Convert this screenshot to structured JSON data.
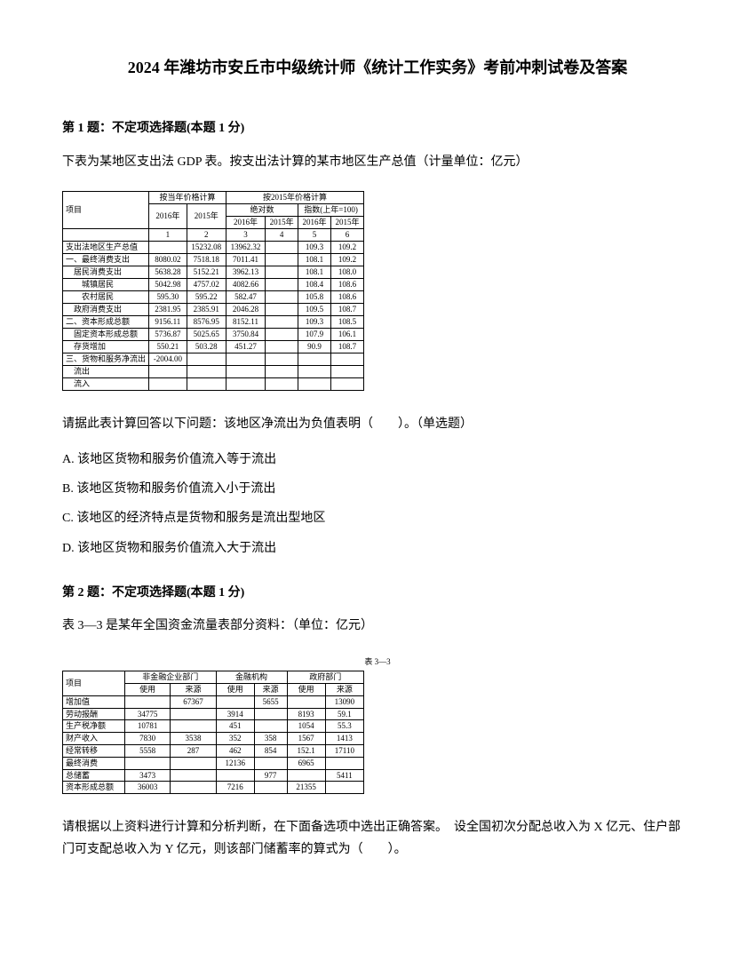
{
  "title": "2024 年潍坊市安丘市中级统计师《统计工作实务》考前冲刺试卷及答案",
  "q1": {
    "header": "第 1 题：不定项选择题(本题 1 分)",
    "text": "下表为某地区支出法 GDP 表。按支出法计算的某市地区生产总值（计量单位：亿元）",
    "analysis": "请据此表计算回答以下问题：该地区净流出为负值表明（　　）。（单选题）",
    "options": {
      "a": "A. 该地区货物和服务价值流入等于流出",
      "b": "B. 该地区货物和服务价值流入小于流出",
      "c": "C. 该地区的经济特点是货物和服务是流出型地区",
      "d": "D. 该地区货物和服务价值流入大于流出"
    }
  },
  "q2": {
    "header": "第 2 题：不定项选择题(本题 1 分)",
    "text": "表 3—3 是某年全国资金流量表部分资料：（单位：亿元）",
    "tableTitle": "表 3—3",
    "analysis": "请根据以上资料进行计算和分析判断，在下面备选项中选出正确答案。　设全国初次分配总收入为 X 亿元、住户部门可支配总收入为 Y 亿元，则该部门储蓄率的算式为（　　）。"
  },
  "table1": {
    "headers": {
      "h1": "按当年价格计算",
      "h2": "按2015年价格计算",
      "y1": "2016年",
      "y2": "2015年",
      "h3": "绝对数",
      "h4": "指数(上年=100)",
      "c1": "2016年",
      "c2": "2015年",
      "c3": "2016年",
      "c4": "2015年",
      "n1": "1",
      "n2": "2",
      "n3": "3",
      "n4": "4",
      "n5": "5",
      "n6": "6",
      "item": "项目"
    },
    "rows": [
      {
        "label": "支出法地区生产总值",
        "v1": "",
        "v2": "15232.08",
        "v3": "13962.32",
        "v4": "",
        "v5": "109.3",
        "v6": "109.2"
      },
      {
        "label": "一、最终消费支出",
        "v1": "8080.02",
        "v2": "7518.18",
        "v3": "7011.41",
        "v4": "",
        "v5": "108.1",
        "v6": "109.2"
      },
      {
        "label": "　居民消费支出",
        "v1": "5638.28",
        "v2": "5152.21",
        "v3": "3962.13",
        "v4": "",
        "v5": "108.1",
        "v6": "108.0"
      },
      {
        "label": "　　城镇居民",
        "v1": "5042.98",
        "v2": "4757.02",
        "v3": "4082.66",
        "v4": "",
        "v5": "108.4",
        "v6": "108.6"
      },
      {
        "label": "　　农村居民",
        "v1": "595.30",
        "v2": "595.22",
        "v3": "582.47",
        "v4": "",
        "v5": "105.8",
        "v6": "108.6"
      },
      {
        "label": "　政府消费支出",
        "v1": "2381.95",
        "v2": "2385.91",
        "v3": "2046.28",
        "v4": "",
        "v5": "109.5",
        "v6": "108.7"
      },
      {
        "label": "二、资本形成总额",
        "v1": "9156.11",
        "v2": "8576.95",
        "v3": "8152.11",
        "v4": "",
        "v5": "109.3",
        "v6": "108.5"
      },
      {
        "label": "　固定资本形成总额",
        "v1": "5736.87",
        "v2": "5025.65",
        "v3": "3750.84",
        "v4": "",
        "v5": "107.9",
        "v6": "106.1"
      },
      {
        "label": "　存货增加",
        "v1": "550.21",
        "v2": "503.28",
        "v3": "451.27",
        "v4": "",
        "v5": "90.9",
        "v6": "108.7"
      },
      {
        "label": "三、货物和服务净流出",
        "v1": "-2004.00",
        "v2": "",
        "v3": "",
        "v4": "",
        "v5": "",
        "v6": ""
      },
      {
        "label": "　流出",
        "v1": "",
        "v2": "",
        "v3": "",
        "v4": "",
        "v5": "",
        "v6": ""
      },
      {
        "label": "　流入",
        "v1": "",
        "v2": "",
        "v3": "",
        "v4": "",
        "v5": "",
        "v6": ""
      }
    ]
  },
  "table2": {
    "headers": {
      "h1": "非金融企业部门",
      "h2": "金融机构",
      "h3": "政府部门",
      "use": "使用",
      "src": "来源",
      "item": "项目"
    },
    "rows": [
      {
        "label": "增加值",
        "v1": "",
        "v2": "67367",
        "v3": "",
        "v4": "5655",
        "v5": "",
        "v6": "13090"
      },
      {
        "label": "劳动报酬",
        "v1": "34775",
        "v2": "",
        "v3": "3914",
        "v4": "",
        "v5": "8193",
        "v6": "59.1"
      },
      {
        "label": "生产税净额",
        "v1": "10781",
        "v2": "",
        "v3": "451",
        "v4": "",
        "v5": "1054",
        "v6": "55.3"
      },
      {
        "label": "财产收入",
        "v1": "7830",
        "v2": "3538",
        "v3": "352",
        "v4": "358",
        "v5": "1567",
        "v6": "1413"
      },
      {
        "label": "经常转移",
        "v1": "5558",
        "v2": "287",
        "v3": "462",
        "v4": "854",
        "v5": "152.1",
        "v6": "17110"
      },
      {
        "label": "最终消费",
        "v1": "",
        "v2": "",
        "v3": "12136",
        "v4": "",
        "v5": "6965",
        "v6": ""
      },
      {
        "label": "总储蓄",
        "v1": "3473",
        "v2": "",
        "v3": "",
        "v4": "977",
        "v5": "",
        "v6": "5411"
      },
      {
        "label": "资本形成总额",
        "v1": "36003",
        "v2": "",
        "v3": "7216",
        "v4": "",
        "v5": "21355",
        "v6": ""
      }
    ]
  }
}
